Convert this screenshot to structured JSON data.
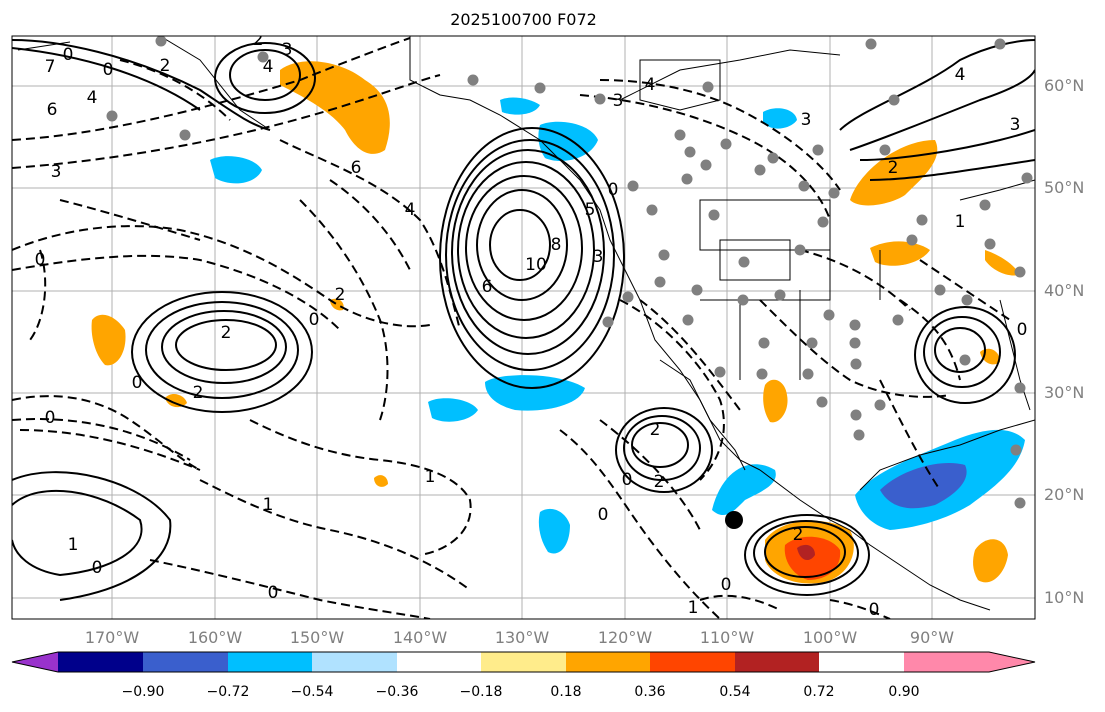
{
  "title": "2025100700 F072",
  "lat_labels": [
    "60°N",
    "50°N",
    "40°N",
    "30°N",
    "20°N",
    "10°N"
  ],
  "lon_labels": [
    "170°W",
    "160°W",
    "150°W",
    "140°W",
    "130°W",
    "120°W",
    "110°W",
    "100°W",
    "90°W"
  ],
  "colorbar": {
    "colors": [
      "#9932cc",
      "#00008b",
      "#3a5fcd",
      "#00bfff",
      "#b0e2ff",
      "#ffffff",
      "#ffec8b",
      "#ffa500",
      "#ff4500",
      "#b22222",
      "#ff88aa"
    ],
    "labels": [
      "−0.90",
      "−0.72",
      "−0.54",
      "−0.36",
      "−0.18",
      "0.18",
      "0.36",
      "0.54",
      "0.72",
      "0.90"
    ]
  },
  "contour_labels": [
    "0",
    "3",
    "2",
    "4",
    "2",
    "7",
    "0",
    "6",
    "4",
    "4",
    "3",
    "6",
    "3",
    "4",
    "5",
    "0",
    "0",
    "10",
    "8",
    "3",
    "6",
    "2",
    "0",
    "2",
    "0",
    "2",
    "1",
    "0",
    "1",
    "2",
    "2",
    "0",
    "1",
    "0",
    "1",
    "0",
    "0",
    "2",
    "0",
    "0",
    "1",
    "3",
    "2",
    "4",
    "3",
    "0"
  ]
}
